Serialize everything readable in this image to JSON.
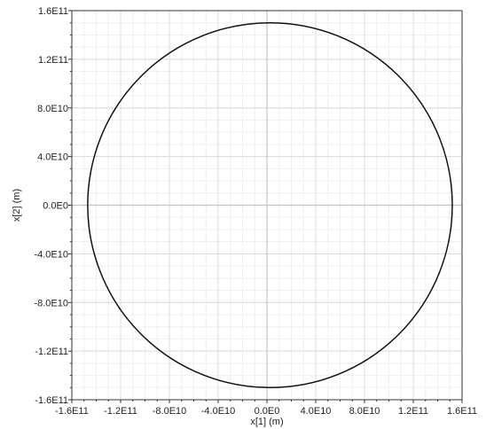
{
  "chart_data": {
    "type": "line",
    "title": "",
    "xlabel": "x[1] (m)",
    "ylabel": "x[2] (m)",
    "xlim": [
      -160000000000.0,
      160000000000.0
    ],
    "ylim": [
      -160000000000.0,
      160000000000.0
    ],
    "grid": true,
    "minor_grid": true,
    "x_ticks": [
      -160000000000.0,
      -120000000000.0,
      -80000000000.0,
      -40000000000.0,
      0,
      40000000000.0,
      80000000000.0,
      120000000000.0,
      160000000000.0
    ],
    "x_tick_labels": [
      "-1.6E11",
      "-1.2E11",
      "-8.0E10",
      "-4.0E10",
      "0.0E0",
      "4.0E10",
      "8.0E10",
      "1.2E11",
      "1.6E11"
    ],
    "y_ticks": [
      160000000000.0,
      120000000000.0,
      80000000000.0,
      40000000000.0,
      0,
      -40000000000.0,
      -80000000000.0,
      -120000000000.0,
      -160000000000.0
    ],
    "y_tick_labels": [
      "1.6E11",
      "1.2E11",
      "8.0E10",
      "4.0E10",
      "0.0E0",
      "-4.0E10",
      "-8.0E10",
      "-1.2E11",
      "-1.6E11"
    ],
    "series": [
      {
        "shape": "ellipse",
        "color": "#111111",
        "center": [
          0.0,
          0.0
        ],
        "x_range": [
          -147000000000.0,
          152000000000.0
        ],
        "y_range": [
          -150000000000.0,
          150000000000.0
        ]
      }
    ],
    "colors": {
      "grid_major": "#dcdcdc",
      "grid_minor": "#efefef",
      "zero_line": "#c4c4c4",
      "axis": "#333333",
      "curve": "#111111"
    }
  }
}
